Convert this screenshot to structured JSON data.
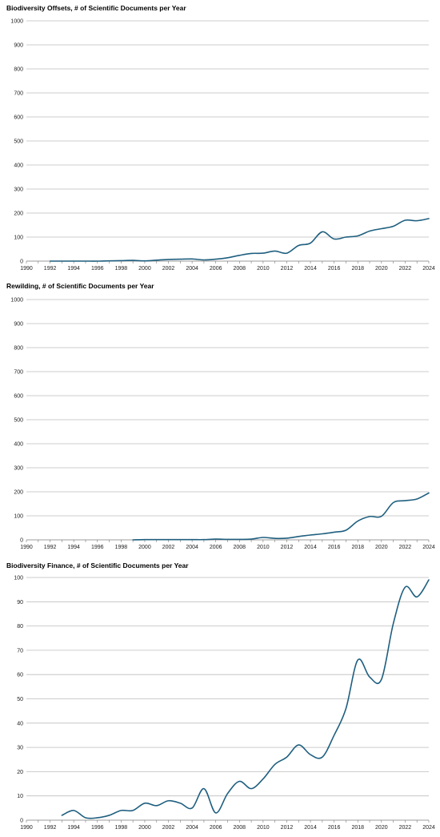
{
  "chart_data": [
    {
      "type": "line",
      "title": "Biodiversity Offsets, # of Scientific Documents per Year",
      "xlim": [
        1990,
        2024
      ],
      "ylim": [
        0,
        1000
      ],
      "xticks": [
        1990,
        1992,
        1994,
        1996,
        1998,
        2000,
        2002,
        2004,
        2006,
        2008,
        2010,
        2012,
        2014,
        2016,
        2018,
        2020,
        2022,
        2024
      ],
      "yticks": [
        0,
        100,
        200,
        300,
        400,
        500,
        600,
        700,
        800,
        900,
        1000
      ],
      "grid": "horizontal",
      "line_color": "#1f5f7f",
      "x": [
        1992,
        1993,
        1994,
        1995,
        1996,
        1997,
        1998,
        1999,
        2000,
        2001,
        2002,
        2003,
        2004,
        2005,
        2006,
        2007,
        2008,
        2009,
        2010,
        2011,
        2012,
        2013,
        2014,
        2015,
        2016,
        2017,
        2018,
        2019,
        2020,
        2021,
        2022,
        2023,
        2024
      ],
      "y": [
        0,
        0,
        0,
        0,
        0,
        1,
        2,
        3,
        1,
        4,
        7,
        8,
        9,
        5,
        8,
        14,
        24,
        32,
        33,
        42,
        33,
        65,
        75,
        122,
        92,
        100,
        105,
        125,
        135,
        145,
        170,
        168,
        177
      ]
    },
    {
      "type": "line",
      "title": "Rewilding, # of Scientific Documents per Year",
      "xlim": [
        1990,
        2024
      ],
      "ylim": [
        0,
        1000
      ],
      "xticks": [
        1990,
        1992,
        1994,
        1996,
        1998,
        2000,
        2002,
        2004,
        2006,
        2008,
        2010,
        2012,
        2014,
        2016,
        2018,
        2020,
        2022,
        2024
      ],
      "yticks": [
        0,
        100,
        200,
        300,
        400,
        500,
        600,
        700,
        800,
        900,
        1000
      ],
      "grid": "horizontal",
      "line_color": "#1f5f7f",
      "x": [
        1999,
        2000,
        2001,
        2002,
        2003,
        2004,
        2005,
        2006,
        2007,
        2008,
        2009,
        2010,
        2011,
        2012,
        2013,
        2014,
        2015,
        2016,
        2017,
        2018,
        2019,
        2020,
        2021,
        2022,
        2023,
        2024
      ],
      "y": [
        0,
        1,
        1,
        1,
        1,
        1,
        1,
        3,
        2,
        2,
        3,
        10,
        6,
        7,
        14,
        20,
        25,
        32,
        40,
        78,
        97,
        98,
        155,
        163,
        170,
        195
      ]
    },
    {
      "type": "line",
      "title": "Biodiversity Finance, # of Scientific Documents per Year",
      "xlim": [
        1990,
        2024
      ],
      "ylim": [
        0,
        100
      ],
      "xticks": [
        1990,
        1992,
        1994,
        1996,
        1998,
        2000,
        2002,
        2004,
        2006,
        2008,
        2010,
        2012,
        2014,
        2016,
        2018,
        2020,
        2022,
        2024
      ],
      "yticks": [
        0,
        10,
        20,
        30,
        40,
        50,
        60,
        70,
        80,
        90,
        100
      ],
      "grid": "horizontal",
      "line_color": "#1f5f7f",
      "x": [
        1993,
        1994,
        1995,
        1996,
        1997,
        1998,
        1999,
        2000,
        2001,
        2002,
        2003,
        2004,
        2005,
        2006,
        2007,
        2008,
        2009,
        2010,
        2011,
        2012,
        2013,
        2014,
        2015,
        2016,
        2017,
        2018,
        2019,
        2020,
        2021,
        2022,
        2023,
        2024
      ],
      "y": [
        2,
        4,
        1,
        1,
        2,
        4,
        4,
        7,
        6,
        8,
        7,
        5,
        13,
        3,
        11,
        16,
        13,
        17,
        23,
        26,
        31,
        27,
        26,
        35,
        46,
        66,
        59,
        58,
        81,
        96,
        92,
        99
      ]
    }
  ]
}
